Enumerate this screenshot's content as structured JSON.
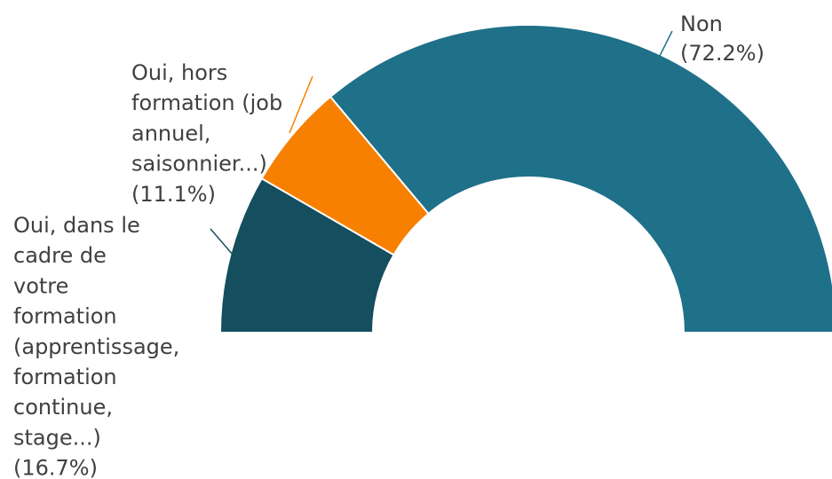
{
  "chart_data": {
    "type": "pie",
    "style": "half-donut",
    "slices": [
      {
        "label": "Oui, dans le cadre de votre formation (apprentissage, formation continue, stage...)",
        "label_lines": [
          "Oui, dans le",
          "cadre de",
          "votre",
          "formation",
          "(apprentissage,",
          "formation",
          "continue,",
          "stage...)",
          "(16.7%)"
        ],
        "value": 16.7,
        "color": "#154e5e"
      },
      {
        "label": "Oui, hors formation (job annuel, saisonnier...)",
        "label_lines": [
          "Oui, hors",
          "formation (job",
          "annuel,",
          "saisonnier...)",
          "(11.1%)"
        ],
        "value": 11.1,
        "color": "#f78000"
      },
      {
        "label": "Non",
        "label_lines": [
          "Non",
          "(72.2%)"
        ],
        "value": 72.2,
        "color": "#1f7089"
      }
    ],
    "legend": "none",
    "data_labels": "outside with leader lines"
  }
}
